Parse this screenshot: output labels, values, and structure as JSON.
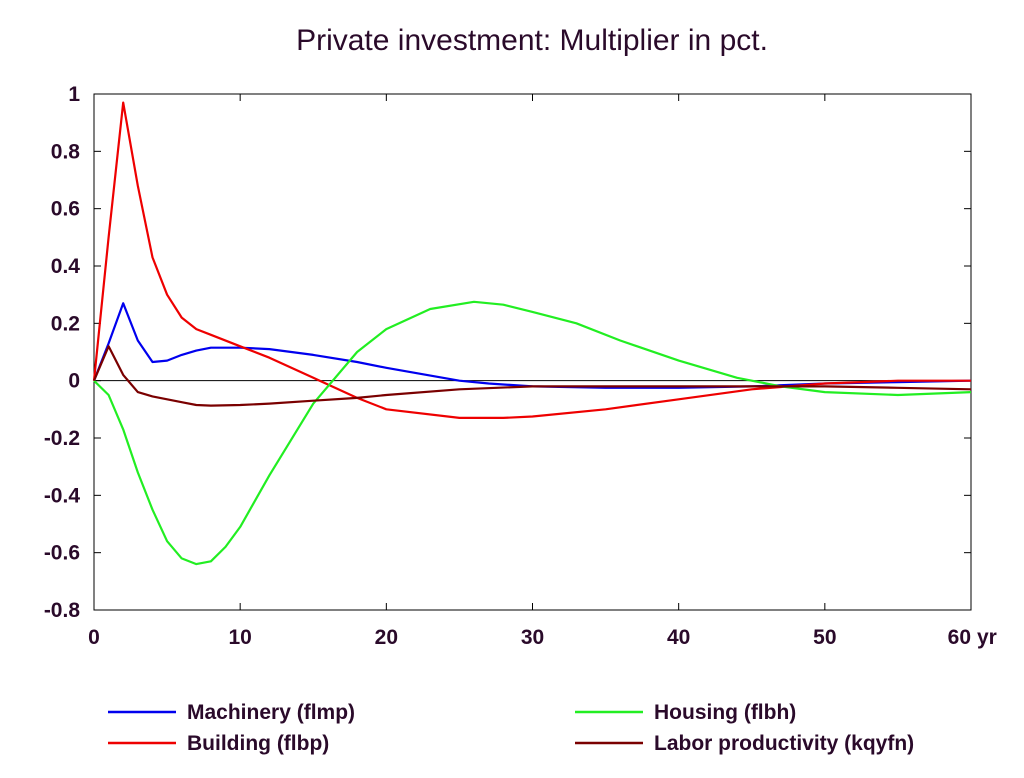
{
  "chart_data": {
    "type": "line",
    "title": "Private investment: Multiplier in pct.",
    "xlabel": "",
    "ylabel": "",
    "x_unit": "yr",
    "xlim": [
      0,
      60
    ],
    "ylim": [
      -0.8,
      1.0
    ],
    "x_ticks": [
      0,
      10,
      20,
      30,
      40,
      50,
      60
    ],
    "x_tick_labels": [
      "0",
      "10",
      "20",
      "30",
      "40",
      "50",
      "60"
    ],
    "y_ticks": [
      1,
      0.8,
      0.6,
      0.4,
      0.2,
      0,
      -0.2,
      -0.4,
      -0.6,
      -0.8
    ],
    "y_tick_labels": [
      "1",
      "0.8",
      "0.6",
      "0.4",
      "0.2",
      "0",
      "-0.2",
      "-0.4",
      "-0.6",
      "-0.8"
    ],
    "zero_line": true,
    "grid": false,
    "legend_position": "bottom",
    "series": [
      {
        "name": "Machinery (flmp)",
        "color": "#0000ee",
        "x": [
          0,
          1,
          2,
          3,
          4,
          5,
          6,
          7,
          8,
          10,
          12,
          15,
          18,
          20,
          25,
          27,
          30,
          35,
          40,
          45,
          50,
          55,
          60
        ],
        "values": [
          0,
          0.13,
          0.27,
          0.14,
          0.065,
          0.07,
          0.09,
          0.105,
          0.115,
          0.115,
          0.11,
          0.09,
          0.065,
          0.045,
          0.0,
          -0.01,
          -0.02,
          -0.025,
          -0.025,
          -0.02,
          -0.01,
          -0.005,
          0.0
        ]
      },
      {
        "name": "Building (flbp)",
        "color": "#ee0000",
        "x": [
          0,
          1,
          2,
          3,
          4,
          5,
          6,
          7,
          8,
          10,
          12,
          15,
          18,
          20,
          25,
          28,
          30,
          35,
          40,
          45,
          50,
          55,
          60
        ],
        "values": [
          0,
          0.5,
          0.97,
          0.68,
          0.43,
          0.3,
          0.22,
          0.18,
          0.16,
          0.12,
          0.08,
          0.01,
          -0.06,
          -0.1,
          -0.13,
          -0.13,
          -0.125,
          -0.1,
          -0.065,
          -0.03,
          -0.01,
          0.0,
          0.0
        ]
      },
      {
        "name": "Housing (flbh)",
        "color": "#22ee22",
        "x": [
          0,
          1,
          2,
          3,
          4,
          5,
          6,
          7,
          8,
          9,
          10,
          12,
          15,
          18,
          20,
          23,
          26,
          28,
          30,
          33,
          36,
          40,
          44,
          47,
          50,
          55,
          60
        ],
        "values": [
          0,
          -0.05,
          -0.17,
          -0.32,
          -0.45,
          -0.56,
          -0.62,
          -0.64,
          -0.63,
          -0.58,
          -0.51,
          -0.33,
          -0.08,
          0.1,
          0.18,
          0.25,
          0.275,
          0.265,
          0.24,
          0.2,
          0.14,
          0.07,
          0.01,
          -0.02,
          -0.04,
          -0.05,
          -0.04
        ]
      },
      {
        "name": "Labor productivity (kqyfn)",
        "color": "#7a0000",
        "x": [
          0,
          1,
          2,
          3,
          4,
          5,
          6,
          7,
          8,
          10,
          12,
          15,
          18,
          20,
          25,
          30,
          35,
          40,
          45,
          50,
          55,
          60
        ],
        "values": [
          0,
          0.12,
          0.02,
          -0.04,
          -0.055,
          -0.065,
          -0.075,
          -0.085,
          -0.087,
          -0.085,
          -0.08,
          -0.07,
          -0.06,
          -0.05,
          -0.03,
          -0.02,
          -0.02,
          -0.02,
          -0.02,
          -0.02,
          -0.025,
          -0.03
        ]
      }
    ]
  }
}
